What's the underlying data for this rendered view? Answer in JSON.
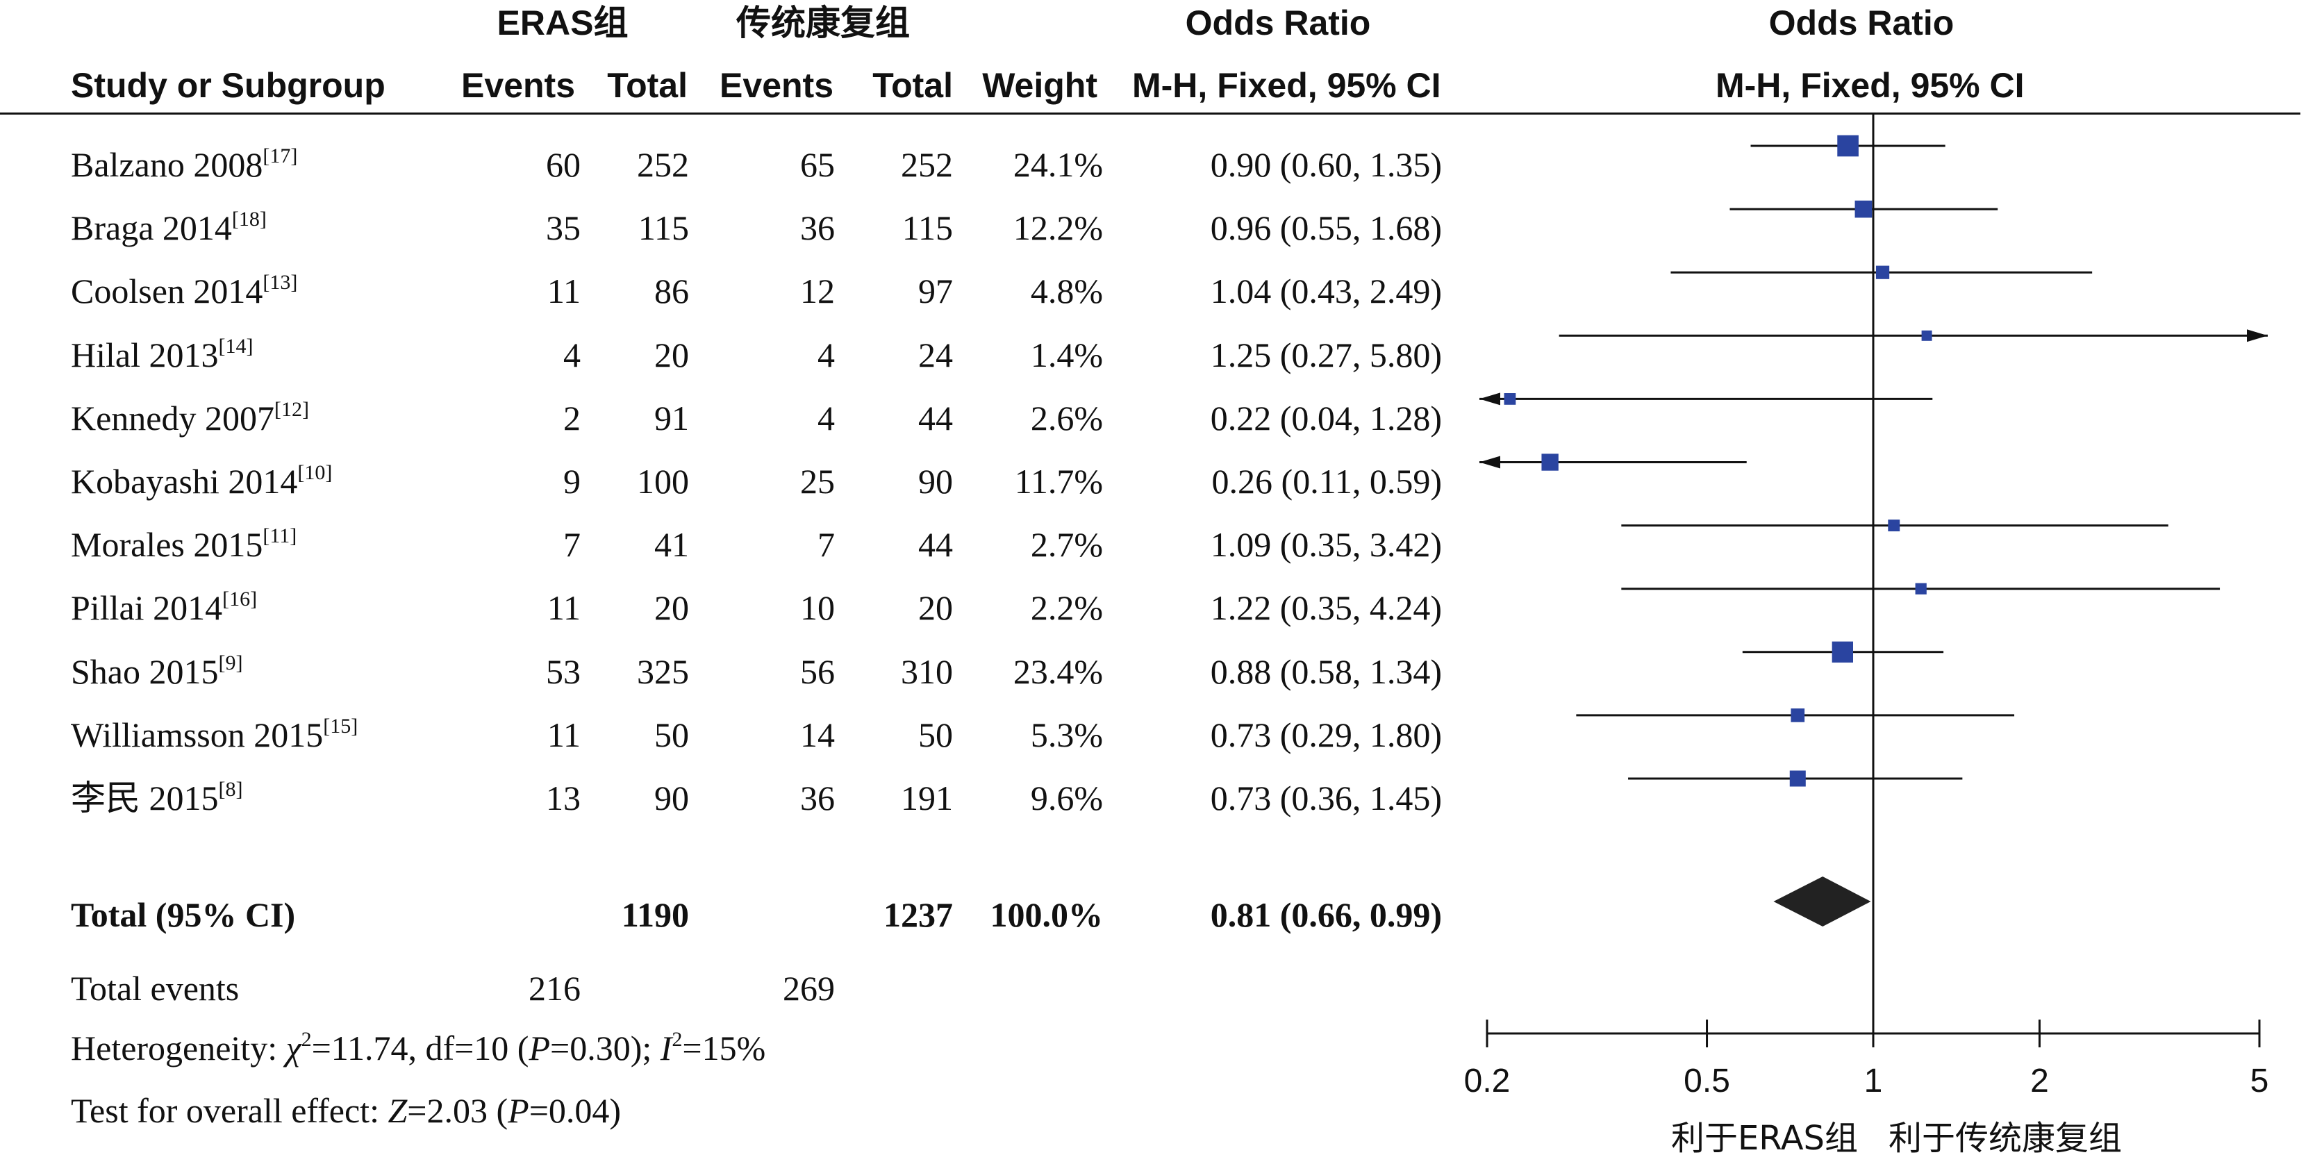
{
  "headers": {
    "group1": "ERAS组",
    "group2": "传统康复组",
    "or_text": "Odds Ratio",
    "or_plot": "Odds Ratio",
    "study": "Study or Subgroup",
    "events1": "Events",
    "total1": "Total",
    "events2": "Events",
    "total2": "Total",
    "weight": "Weight",
    "method_text": "M-H, Fixed, 95% CI",
    "method_plot": "M-H, Fixed, 95% CI"
  },
  "studies": [
    {
      "name": "Balzano 2008",
      "ref": "[17]",
      "e1": "60",
      "t1": "252",
      "e2": "65",
      "t2": "252",
      "weight": "24.1%",
      "ci_text": "0.90 (0.60, 1.35)"
    },
    {
      "name": "Braga 2014",
      "ref": "[18]",
      "e1": "35",
      "t1": "115",
      "e2": "36",
      "t2": "115",
      "weight": "12.2%",
      "ci_text": "0.96 (0.55, 1.68)"
    },
    {
      "name": "Coolsen 2014",
      "ref": "[13]",
      "e1": "11",
      "t1": "86",
      "e2": "12",
      "t2": "97",
      "weight": "4.8%",
      "ci_text": "1.04 (0.43, 2.49)"
    },
    {
      "name": "Hilal 2013",
      "ref": "[14]",
      "e1": "4",
      "t1": "20",
      "e2": "4",
      "t2": "24",
      "weight": "1.4%",
      "ci_text": "1.25 (0.27, 5.80)"
    },
    {
      "name": "Kennedy 2007",
      "ref": "[12]",
      "e1": "2",
      "t1": "91",
      "e2": "4",
      "t2": "44",
      "weight": "2.6%",
      "ci_text": "0.22 (0.04, 1.28)"
    },
    {
      "name": "Kobayashi 2014",
      "ref": "[10]",
      "e1": "9",
      "t1": "100",
      "e2": "25",
      "t2": "90",
      "weight": "11.7%",
      "ci_text": "0.26 (0.11, 0.59)"
    },
    {
      "name": "Morales 2015",
      "ref": "[11]",
      "e1": "7",
      "t1": "41",
      "e2": "7",
      "t2": "44",
      "weight": "2.7%",
      "ci_text": "1.09 (0.35, 3.42)"
    },
    {
      "name": "Pillai 2014",
      "ref": "[16]",
      "e1": "11",
      "t1": "20",
      "e2": "10",
      "t2": "20",
      "weight": "2.2%",
      "ci_text": "1.22 (0.35, 4.24)"
    },
    {
      "name": "Shao 2015",
      "ref": "[9]",
      "e1": "53",
      "t1": "325",
      "e2": "56",
      "t2": "310",
      "weight": "23.4%",
      "ci_text": "0.88 (0.58, 1.34)"
    },
    {
      "name": "Williamsson 2015",
      "ref": "[15]",
      "e1": "11",
      "t1": "50",
      "e2": "14",
      "t2": "50",
      "weight": "5.3%",
      "ci_text": "0.73 (0.29, 1.80)"
    },
    {
      "name": "李民 2015",
      "ref": "[8]",
      "e1": "13",
      "t1": "90",
      "e2": "36",
      "t2": "191",
      "weight": "9.6%",
      "ci_text": "0.73 (0.36, 1.45)"
    }
  ],
  "total": {
    "label": "Total (95% CI)",
    "t1": "1190",
    "t2": "1237",
    "weight": "100.0%",
    "ci_text": "0.81 (0.66, 0.99)"
  },
  "total_events": {
    "label": "Total events",
    "e1": "216",
    "e2": "269"
  },
  "heterogeneity": {
    "prefix": "Heterogeneity: ",
    "chi_symbol": "χ",
    "chi_sup": "2",
    "chi_value": "=11.74, df=10 (",
    "p_symbol": "P",
    "p_value": "=0.30); ",
    "i_symbol": "I",
    "i_sup": "2",
    "i_value": "=15%"
  },
  "overall_effect": {
    "prefix": "Test for overall effect: ",
    "z_symbol": "Z",
    "z_value": "=2.03 (",
    "p_symbol": "P",
    "p_value": "=0.04)"
  },
  "axis": {
    "ticks": [
      0.2,
      0.5,
      1,
      2,
      5
    ],
    "tick_labels": [
      "0.2",
      "0.5",
      "1",
      "2",
      "5"
    ],
    "favours_left": "利于ERAS组",
    "favours_right": "利于传统康复组"
  },
  "chart_data": {
    "type": "forest",
    "scale": "log",
    "xlim": [
      0.2,
      5
    ],
    "null_line": 1,
    "point_color": "#2a44a0",
    "diamond_color": "#222222",
    "studies": [
      {
        "name": "Balzano 2008",
        "or": 0.9,
        "lo": 0.6,
        "hi": 1.35,
        "weight": 24.1
      },
      {
        "name": "Braga 2014",
        "or": 0.96,
        "lo": 0.55,
        "hi": 1.68,
        "weight": 12.2
      },
      {
        "name": "Coolsen 2014",
        "or": 1.04,
        "lo": 0.43,
        "hi": 2.49,
        "weight": 4.8
      },
      {
        "name": "Hilal 2013",
        "or": 1.25,
        "lo": 0.27,
        "hi": 5.8,
        "weight": 1.4
      },
      {
        "name": "Kennedy 2007",
        "or": 0.22,
        "lo": 0.04,
        "hi": 1.28,
        "weight": 2.6
      },
      {
        "name": "Kobayashi 2014",
        "or": 0.26,
        "lo": 0.11,
        "hi": 0.59,
        "weight": 11.7
      },
      {
        "name": "Morales 2015",
        "or": 1.09,
        "lo": 0.35,
        "hi": 3.42,
        "weight": 2.7
      },
      {
        "name": "Pillai 2014",
        "or": 1.22,
        "lo": 0.35,
        "hi": 4.24,
        "weight": 2.2
      },
      {
        "name": "Shao 2015",
        "or": 0.88,
        "lo": 0.58,
        "hi": 1.34,
        "weight": 23.4
      },
      {
        "name": "Williamsson 2015",
        "or": 0.73,
        "lo": 0.29,
        "hi": 1.8,
        "weight": 5.3
      },
      {
        "name": "李民 2015",
        "or": 0.73,
        "lo": 0.36,
        "hi": 1.45,
        "weight": 9.6
      }
    ],
    "total": {
      "or": 0.81,
      "lo": 0.66,
      "hi": 0.99
    }
  }
}
